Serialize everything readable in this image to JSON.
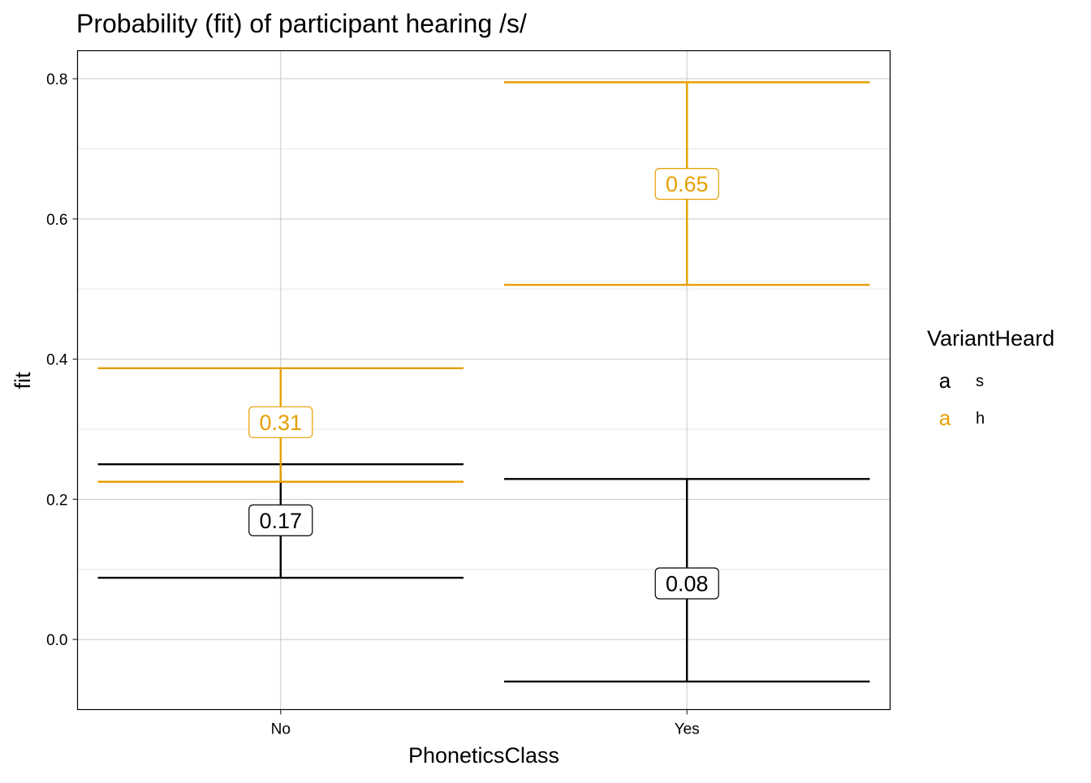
{
  "chart_data": {
    "type": "errorbar",
    "title": "Probability (fit) of participant hearing /s/",
    "xlabel": "PhoneticsClass",
    "ylabel": "fit",
    "categories": [
      "No",
      "Yes"
    ],
    "ylim": [
      -0.1,
      0.84
    ],
    "yticks": [
      0.0,
      0.2,
      0.4,
      0.6,
      0.8
    ],
    "ytick_labels": [
      "0.0",
      "0.2",
      "0.4",
      "0.6",
      "0.8"
    ],
    "grid": true,
    "legend": {
      "title": "VariantHeard",
      "placement": "right",
      "key_glyph": "a",
      "entries": [
        {
          "name": "s",
          "color": "#000000"
        },
        {
          "name": "h",
          "color": "#E69F00"
        }
      ]
    },
    "series": [
      {
        "name": "s",
        "color": "#000000",
        "points": [
          {
            "x": "No",
            "fit": 0.17,
            "lower": 0.088,
            "upper": 0.25,
            "label": "0.17"
          },
          {
            "x": "Yes",
            "fit": 0.08,
            "lower": -0.06,
            "upper": 0.229,
            "label": "0.08"
          }
        ]
      },
      {
        "name": "h",
        "color": "#E69F00",
        "points": [
          {
            "x": "No",
            "fit": 0.31,
            "lower": 0.225,
            "upper": 0.387,
            "label": "0.31"
          },
          {
            "x": "Yes",
            "fit": 0.65,
            "lower": 0.506,
            "upper": 0.795,
            "label": "0.65"
          }
        ]
      }
    ]
  }
}
